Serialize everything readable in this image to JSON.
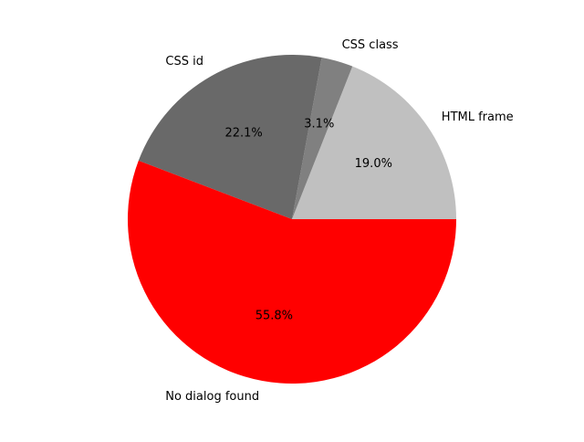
{
  "chart_data": {
    "type": "pie",
    "title": "",
    "start_angle_deg": 0,
    "direction": "counterclockwise",
    "slices": [
      {
        "label": "HTML frame",
        "value": 19.0,
        "pct_label": "19.0%",
        "color": "#c0c0c0"
      },
      {
        "label": "CSS class",
        "value": 3.1,
        "pct_label": "3.1%",
        "color": "#808080"
      },
      {
        "label": "CSS id",
        "value": 22.1,
        "pct_label": "22.1%",
        "color": "#696969"
      },
      {
        "label": "No dialog found",
        "value": 55.8,
        "pct_label": "55.8%",
        "color": "#ff0000"
      }
    ]
  }
}
